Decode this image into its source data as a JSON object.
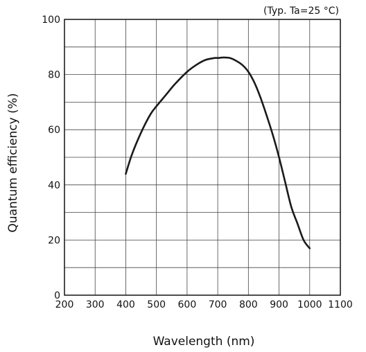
{
  "chart_data": {
    "type": "line",
    "annotation": "(Typ. Ta=25 °C)",
    "xlabel": "Wavelength (nm)",
    "ylabel": "Quantum efficiency (%)",
    "xlim": [
      200,
      1100
    ],
    "ylim": [
      0,
      100
    ],
    "x_ticks": [
      "200",
      "300",
      "400",
      "500",
      "600",
      "700",
      "800",
      "900",
      "1000",
      "1100"
    ],
    "y_ticks": [
      "0",
      "20",
      "40",
      "60",
      "80",
      "100"
    ],
    "x_grid_step": 100,
    "y_grid_step": 10,
    "grid": true,
    "line_color": "#1a1a1a",
    "series": [
      {
        "x": [
          400,
          420,
          450,
          480,
          500,
          530,
          560,
          600,
          630,
          660,
          690,
          700,
          720,
          740,
          760,
          780,
          800,
          820,
          840,
          860,
          880,
          900,
          920,
          940,
          960,
          980,
          1000
        ],
        "y": [
          44,
          51,
          59,
          65.5,
          68.5,
          72.5,
          76.5,
          81,
          83.5,
          85.3,
          86,
          86,
          86.2,
          86,
          85,
          83.5,
          81,
          77,
          71.5,
          65,
          58,
          50,
          41,
          32,
          26,
          20,
          17
        ]
      }
    ]
  }
}
